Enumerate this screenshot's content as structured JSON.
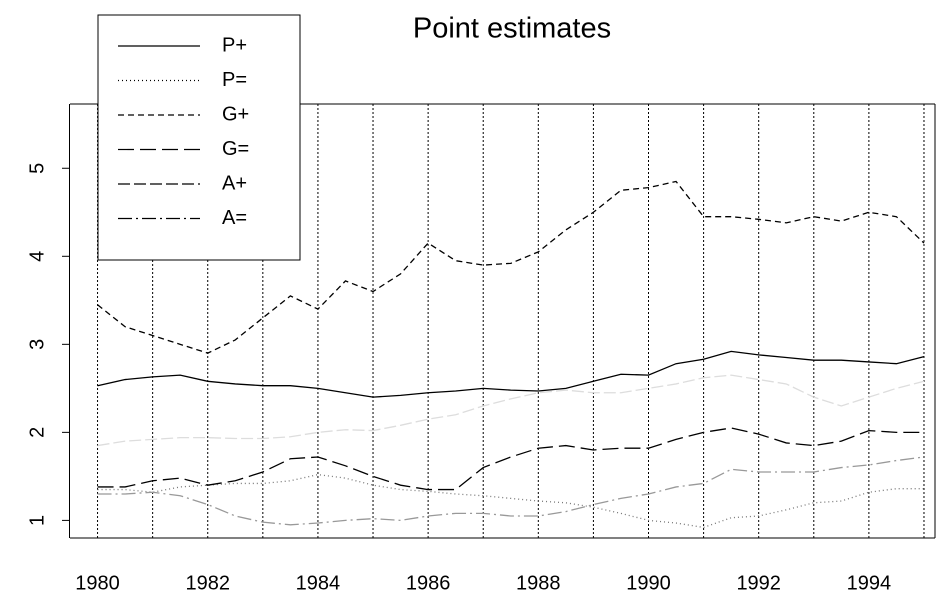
{
  "chart_data": {
    "type": "line",
    "title": "Point estimates",
    "x": [
      1980,
      1980.5,
      1981,
      1981.5,
      1982,
      1982.5,
      1983,
      1983.5,
      1984,
      1984.5,
      1985,
      1985.5,
      1986,
      1986.5,
      1987,
      1987.5,
      1988,
      1988.5,
      1989,
      1989.5,
      1990,
      1990.5,
      1991,
      1991.5,
      1992,
      1992.5,
      1993,
      1993.5,
      1994,
      1994.5,
      1995
    ],
    "series": [
      {
        "name": "P+",
        "color": "#000000",
        "dash": "none",
        "values": [
          2.53,
          2.6,
          2.63,
          2.65,
          2.58,
          2.55,
          2.53,
          2.53,
          2.5,
          2.45,
          2.4,
          2.42,
          2.45,
          2.47,
          2.5,
          2.48,
          2.47,
          2.5,
          2.58,
          2.66,
          2.65,
          2.78,
          2.83,
          2.92,
          2.88,
          2.85,
          2.82,
          2.82,
          2.8,
          2.78,
          2.86
        ]
      },
      {
        "name": "P=",
        "color": "#777777",
        "dash": "1,3",
        "values": [
          1.35,
          1.35,
          1.32,
          1.38,
          1.4,
          1.42,
          1.42,
          1.45,
          1.52,
          1.48,
          1.4,
          1.35,
          1.33,
          1.3,
          1.28,
          1.25,
          1.22,
          1.2,
          1.15,
          1.08,
          1.0,
          0.97,
          0.92,
          1.03,
          1.05,
          1.12,
          1.2,
          1.22,
          1.32,
          1.36,
          1.36
        ]
      },
      {
        "name": "G+",
        "color": "#000000",
        "dash": "6,4",
        "values": [
          3.45,
          3.2,
          3.1,
          3.0,
          2.9,
          3.05,
          3.3,
          3.55,
          3.4,
          3.72,
          3.6,
          3.8,
          4.15,
          3.95,
          3.9,
          3.92,
          4.05,
          4.3,
          4.5,
          4.75,
          4.78,
          4.85,
          4.45,
          4.45,
          4.42,
          4.38,
          4.45,
          4.4,
          4.5,
          4.45,
          4.15
        ]
      },
      {
        "name": "G=",
        "color": "#000000",
        "dash": "16,6",
        "values": [
          1.38,
          1.38,
          1.45,
          1.48,
          1.4,
          1.45,
          1.55,
          1.7,
          1.72,
          1.62,
          1.5,
          1.4,
          1.35,
          1.35,
          1.6,
          1.72,
          1.82,
          1.85,
          1.8,
          1.82,
          1.82,
          1.92,
          2.0,
          2.05,
          1.98,
          1.88,
          1.85,
          1.9,
          2.02,
          2.0,
          2.0
        ]
      },
      {
        "name": "A+",
        "color": "#dddddd",
        "dash": "12,4",
        "values": [
          1.85,
          1.9,
          1.92,
          1.94,
          1.94,
          1.93,
          1.93,
          1.95,
          2.0,
          2.03,
          2.02,
          2.08,
          2.15,
          2.2,
          2.3,
          2.38,
          2.45,
          2.48,
          2.45,
          2.45,
          2.5,
          2.55,
          2.62,
          2.65,
          2.6,
          2.55,
          2.4,
          2.3,
          2.4,
          2.5,
          2.58
        ]
      },
      {
        "name": "A=",
        "color": "#999999",
        "dash": "14,4,2,4",
        "values": [
          1.3,
          1.3,
          1.32,
          1.28,
          1.18,
          1.05,
          0.98,
          0.95,
          0.97,
          1.0,
          1.02,
          1.0,
          1.05,
          1.08,
          1.08,
          1.05,
          1.05,
          1.1,
          1.18,
          1.25,
          1.3,
          1.38,
          1.42,
          1.58,
          1.55,
          1.55,
          1.55,
          1.6,
          1.63,
          1.68,
          1.72
        ]
      }
    ],
    "xlim": [
      1979.5,
      1995.2
    ],
    "ylim": [
      0.8,
      5.73
    ],
    "xticks": [
      1980,
      1982,
      1984,
      1986,
      1988,
      1990,
      1992,
      1994
    ],
    "yticks": [
      1,
      2,
      3,
      4,
      5
    ],
    "xgrid": [
      1980,
      1981,
      1982,
      1983,
      1984,
      1985,
      1986,
      1987,
      1988,
      1989,
      1990,
      1991,
      1992,
      1993,
      1994,
      1995
    ],
    "legend": "top-left"
  }
}
